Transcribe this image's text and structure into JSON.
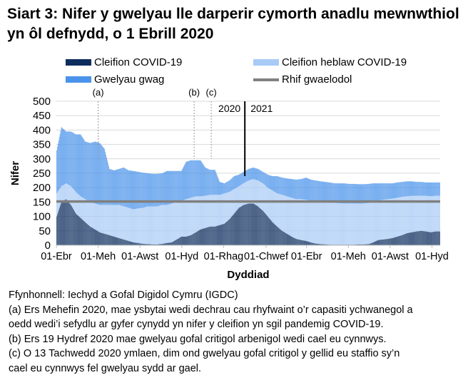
{
  "title": "Siart 3: Nifer y gwelyau lle darperir cymorth anadlu mewnwthiol yn ôl defnydd, o 1 Ebrill 2020",
  "legend": {
    "covid": "Cleifion COVID-19",
    "non_covid": "Cleifion heblaw COVID-19",
    "empty": "Gwelyau gwag",
    "minimum": "Rhif gwaelodol"
  },
  "colors": {
    "covid": "#0d2d5e",
    "non_covid": "#a8cbf6",
    "empty": "#4a93ea",
    "minimum": "#808080",
    "grid": "#d9d9d9"
  },
  "chart_data": {
    "type": "bar",
    "stacked": true,
    "xlabel": "Dyddiad",
    "ylabel": "Nifer",
    "ylim": [
      0,
      500
    ],
    "yticks": [
      "0",
      "50",
      "100",
      "150",
      "200",
      "250",
      "300",
      "350",
      "400",
      "450",
      "500"
    ],
    "xlim": [
      "2020-04-01",
      "2021-10-13"
    ],
    "xticks": [
      {
        "date": "2020-04-01",
        "label": "01-Ebr"
      },
      {
        "date": "2020-06-01",
        "label": "01-Meh"
      },
      {
        "date": "2020-08-01",
        "label": "01-Awst"
      },
      {
        "date": "2020-10-01",
        "label": "01-Hyd"
      },
      {
        "date": "2020-12-01",
        "label": "01-Rhag"
      },
      {
        "date": "2021-02-01",
        "label": "01-Chwef"
      },
      {
        "date": "2021-04-01",
        "label": "01-Ebr"
      },
      {
        "date": "2021-06-01",
        "label": "01-Meh"
      },
      {
        "date": "2021-08-01",
        "label": "01-Awst"
      },
      {
        "date": "2021-10-01",
        "label": "01-Hyd"
      }
    ],
    "grid": true,
    "legend_position": "top",
    "minimum_line": 152,
    "annotations": [
      {
        "date": "2020-06-01",
        "label": "(a)"
      },
      {
        "date": "2020-10-19",
        "label": "(b)"
      },
      {
        "date": "2020-11-13",
        "label": "(c)"
      }
    ],
    "year_divider": {
      "date": "2021-01-01",
      "left_label": "2020",
      "right_label": "2021"
    },
    "x": [
      "2020-04-01",
      "2020-04-08",
      "2020-04-15",
      "2020-04-22",
      "2020-04-29",
      "2020-05-06",
      "2020-05-13",
      "2020-05-20",
      "2020-05-27",
      "2020-06-03",
      "2020-06-10",
      "2020-06-17",
      "2020-06-24",
      "2020-07-01",
      "2020-07-08",
      "2020-07-15",
      "2020-07-22",
      "2020-07-29",
      "2020-08-05",
      "2020-08-12",
      "2020-08-19",
      "2020-08-26",
      "2020-09-02",
      "2020-09-09",
      "2020-09-16",
      "2020-09-23",
      "2020-09-30",
      "2020-10-07",
      "2020-10-14",
      "2020-10-21",
      "2020-10-28",
      "2020-11-04",
      "2020-11-11",
      "2020-11-18",
      "2020-11-25",
      "2020-12-02",
      "2020-12-09",
      "2020-12-16",
      "2020-12-23",
      "2020-12-30",
      "2021-01-06",
      "2021-01-13",
      "2021-01-20",
      "2021-01-27",
      "2021-02-03",
      "2021-02-10",
      "2021-02-17",
      "2021-02-24",
      "2021-03-03",
      "2021-03-10",
      "2021-03-17",
      "2021-03-24",
      "2021-03-31",
      "2021-04-07",
      "2021-04-14",
      "2021-04-21",
      "2021-04-28",
      "2021-05-05",
      "2021-05-12",
      "2021-05-19",
      "2021-05-26",
      "2021-06-02",
      "2021-06-09",
      "2021-06-16",
      "2021-06-23",
      "2021-06-30",
      "2021-07-07",
      "2021-07-14",
      "2021-07-21",
      "2021-07-28",
      "2021-08-04",
      "2021-08-11",
      "2021-08-18",
      "2021-08-25",
      "2021-09-01",
      "2021-09-08",
      "2021-09-15",
      "2021-09-22",
      "2021-09-29",
      "2021-10-06"
    ],
    "series": [
      {
        "name": "Cleifion COVID-19",
        "values": [
          100,
          150,
          160,
          140,
          110,
          95,
          80,
          65,
          55,
          45,
          40,
          35,
          30,
          25,
          20,
          15,
          10,
          8,
          5,
          4,
          3,
          3,
          5,
          8,
          10,
          20,
          30,
          30,
          35,
          45,
          55,
          60,
          65,
          65,
          70,
          75,
          90,
          110,
          130,
          140,
          145,
          145,
          135,
          120,
          100,
          80,
          65,
          50,
          40,
          30,
          22,
          18,
          15,
          10,
          6,
          4,
          3,
          2,
          2,
          2,
          2,
          2,
          2,
          3,
          3,
          4,
          10,
          18,
          20,
          22,
          25,
          30,
          35,
          42,
          45,
          48,
          50,
          48,
          45,
          48
        ]
      },
      {
        "name": "Cleifion heblaw COVID-19",
        "values": [
          80,
          55,
          55,
          65,
          75,
          75,
          80,
          85,
          90,
          95,
          100,
          105,
          110,
          115,
          115,
          115,
          115,
          120,
          125,
          131,
          132,
          132,
          135,
          132,
          135,
          130,
          125,
          130,
          130,
          125,
          115,
          112,
          110,
          110,
          105,
          105,
          95,
          85,
          75,
          75,
          80,
          85,
          90,
          95,
          100,
          110,
          115,
          125,
          130,
          135,
          138,
          142,
          143,
          145,
          146,
          146,
          147,
          146,
          145,
          144,
          143,
          143,
          143,
          142,
          142,
          143,
          140,
          137,
          138,
          138,
          137,
          135,
          133,
          128,
          127,
          124,
          122,
          124,
          125,
          124
        ]
      },
      {
        "name": "Gwelyau gwag",
        "values": [
          150,
          205,
          180,
          190,
          200,
          215,
          200,
          205,
          215,
          215,
          195,
          125,
          120,
          125,
          135,
          130,
          133,
          127,
          122,
          115,
          113,
          113,
          110,
          118,
          113,
          108,
          103,
          130,
          130,
          125,
          125,
          98,
          87,
          87,
          45,
          35,
          40,
          45,
          40,
          40,
          40,
          40,
          40,
          40,
          45,
          50,
          60,
          60,
          62,
          65,
          68,
          70,
          77,
          73,
          73,
          72,
          70,
          70,
          68,
          69,
          70,
          68,
          68,
          67,
          67,
          66,
          65,
          60,
          57,
          55,
          53,
          53,
          52,
          52,
          50,
          48,
          48,
          46,
          48,
          46
        ]
      }
    ]
  },
  "notes": [
    "Ffynhonnell: Iechyd a Gofal Digidol Cymru (IGDC)",
    "(a) Ers Mehefin 2020, mae ysbytai wedi dechrau cau rhyfwaint o’r capasiti ychwanegol a",
    "oedd wedi’i sefydlu ar gyfer cynydd yn nifer y cleifion yn sgil pandemig COVID-19.",
    "(b) Ers 19 Hydref 2020 mae gwelyau gofal critigol arbenigol wedi cael eu cynnwys.",
    "(c) O 13 Tachwedd 2020 ymlaen, dim ond gwelyau gofal critigol y gellid eu staffio sy’n",
    "cael eu cynnwys fel gwelyau sydd ar gael."
  ]
}
